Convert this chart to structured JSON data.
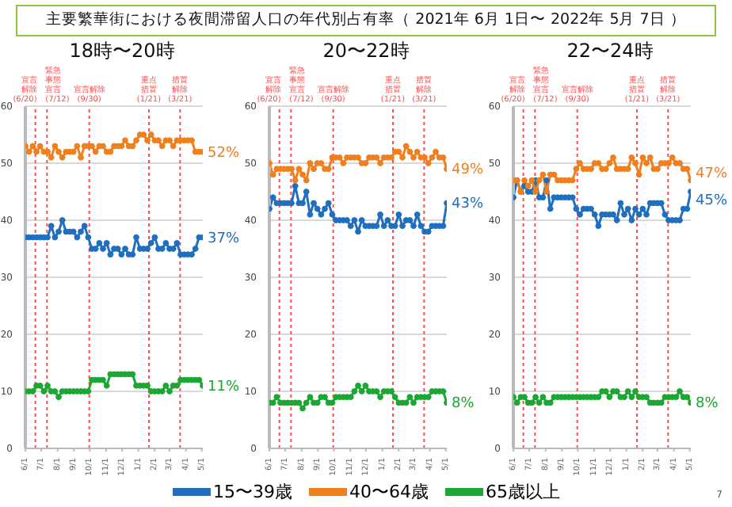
{
  "chart_data": [
    {
      "type": "other",
      "title": "主要繁華街における夜間滞留人口の年代別占有率（ 2021年 6月 1日〜 2022年 5月 7日 ）",
      "annotations": [
        "7"
      ]
    },
    {
      "type": "line",
      "title": "18時〜20時",
      "xlim": [
        "2021-06-01",
        "2022-05-03"
      ],
      "ylim": [
        0,
        60
      ],
      "yticks": [
        0,
        10,
        20,
        30,
        40,
        50,
        60
      ],
      "grid": "y",
      "marker": "circle",
      "x": [
        "2021-06-01",
        "2021-06-08",
        "2021-06-15",
        "2021-06-22",
        "2021-06-29",
        "2021-07-06",
        "2021-07-13",
        "2021-07-20",
        "2021-07-27",
        "2021-08-03",
        "2021-08-10",
        "2021-08-17",
        "2021-08-24",
        "2021-08-31",
        "2021-09-07",
        "2021-09-14",
        "2021-09-21",
        "2021-09-28",
        "2021-10-05",
        "2021-10-12",
        "2021-10-19",
        "2021-10-26",
        "2021-11-02",
        "2021-11-09",
        "2021-11-16",
        "2021-11-23",
        "2021-11-30",
        "2021-12-07",
        "2021-12-14",
        "2021-12-21",
        "2021-12-28",
        "2022-01-04",
        "2022-01-11",
        "2022-01-18",
        "2022-01-25",
        "2022-02-01",
        "2022-02-08",
        "2022-02-15",
        "2022-02-22",
        "2022-03-01",
        "2022-03-08",
        "2022-03-15",
        "2022-03-22",
        "2022-03-29",
        "2022-04-05",
        "2022-04-12",
        "2022-04-19",
        "2022-04-26",
        "2022-05-03"
      ],
      "xticks": [
        {
          "value": "2021-06-01",
          "label": "6/1"
        },
        {
          "value": "2021-07-01",
          "label": "7/1"
        },
        {
          "value": "2021-08-01",
          "label": "8/1"
        },
        {
          "value": "2021-09-01",
          "label": "9/1"
        },
        {
          "value": "2021-10-01",
          "label": "10/1"
        },
        {
          "value": "2021-11-01",
          "label": "11/1"
        },
        {
          "value": "2021-12-01",
          "label": "12/1"
        },
        {
          "value": "2022-01-01",
          "label": "1/1"
        },
        {
          "value": "2022-02-01",
          "label": "2/1"
        },
        {
          "value": "2022-03-01",
          "label": "3/1"
        },
        {
          "value": "2022-04-01",
          "label": "4/1"
        },
        {
          "value": "2022-05-01",
          "label": "5/1"
        }
      ],
      "ref_lines": [
        {
          "axis": "x",
          "value": "2021-06-20",
          "label": "宣言解除(6/20)",
          "color": "#ff4d4d",
          "line_style": "dotted"
        },
        {
          "axis": "x",
          "value": "2021-07-12",
          "label": "緊急事態宣言(7/12)",
          "color": "#ff4d4d",
          "line_style": "dotted"
        },
        {
          "axis": "x",
          "value": "2021-09-30",
          "label": "宣言解除(9/30)",
          "color": "#ff4d4d",
          "line_style": "dotted"
        },
        {
          "axis": "x",
          "value": "2022-01-21",
          "label": "重点措置(1/21)",
          "color": "#ff4d4d",
          "line_style": "dotted"
        },
        {
          "axis": "x",
          "value": "2022-03-21",
          "label": "措置解除(3/21)",
          "color": "#ff4d4d",
          "line_style": "dotted"
        }
      ],
      "annotations": [
        {
          "text": "52%",
          "x": "2022-05-03",
          "y": 52
        },
        {
          "text": "37%",
          "x": "2022-05-03",
          "y": 37
        },
        {
          "text": "11%",
          "x": "2022-05-03",
          "y": 11
        }
      ],
      "series": [
        {
          "color": "#1f6fc1",
          "values": [
            37,
            37,
            37,
            37,
            37,
            37,
            37,
            39,
            37,
            38,
            40,
            38,
            38,
            38,
            37,
            38,
            39,
            37,
            35,
            35,
            36,
            35,
            36,
            34,
            35,
            35,
            34,
            35,
            34,
            34,
            37,
            35,
            35,
            35,
            36,
            37,
            35,
            35,
            36,
            35,
            35,
            36,
            34,
            34,
            34,
            34,
            35,
            37,
            37
          ]
        },
        {
          "color": "#f07f1e",
          "values": [
            53,
            52,
            53,
            52,
            53,
            52,
            52,
            51,
            53,
            52,
            51,
            52,
            52,
            52,
            53,
            51,
            53,
            53,
            53,
            52,
            53,
            53,
            52,
            52,
            53,
            53,
            53,
            54,
            53,
            53,
            54,
            55,
            55,
            54,
            55,
            54,
            54,
            53,
            54,
            54,
            53,
            54,
            54,
            54,
            54,
            54,
            52,
            52,
            52
          ]
        },
        {
          "color": "#1aa832",
          "values": [
            10,
            10,
            10,
            11,
            11,
            10,
            11,
            10,
            10,
            9,
            10,
            10,
            10,
            10,
            10,
            10,
            10,
            10,
            12,
            12,
            12,
            12,
            11,
            13,
            13,
            13,
            13,
            13,
            13,
            13,
            11,
            11,
            11,
            11,
            10,
            10,
            10,
            10,
            11,
            10,
            11,
            11,
            12,
            12,
            12,
            12,
            12,
            12,
            11
          ]
        }
      ]
    },
    {
      "type": "line",
      "title": "20〜22時",
      "xlim": [
        "2021-06-01",
        "2022-05-03"
      ],
      "ylim": [
        0,
        60
      ],
      "yticks": [
        0,
        10,
        20,
        30,
        40,
        50,
        60
      ],
      "grid": "y",
      "marker": "circle",
      "legend": "bottom",
      "x": [
        "2021-06-01",
        "2021-06-08",
        "2021-06-15",
        "2021-06-22",
        "2021-06-29",
        "2021-07-06",
        "2021-07-13",
        "2021-07-20",
        "2021-07-27",
        "2021-08-03",
        "2021-08-10",
        "2021-08-17",
        "2021-08-24",
        "2021-08-31",
        "2021-09-07",
        "2021-09-14",
        "2021-09-21",
        "2021-09-28",
        "2021-10-05",
        "2021-10-12",
        "2021-10-19",
        "2021-10-26",
        "2021-11-02",
        "2021-11-09",
        "2021-11-16",
        "2021-11-23",
        "2021-11-30",
        "2021-12-07",
        "2021-12-14",
        "2021-12-21",
        "2021-12-28",
        "2022-01-04",
        "2022-01-11",
        "2022-01-18",
        "2022-01-25",
        "2022-02-01",
        "2022-02-08",
        "2022-02-15",
        "2022-02-22",
        "2022-03-01",
        "2022-03-08",
        "2022-03-15",
        "2022-03-22",
        "2022-03-29",
        "2022-04-05",
        "2022-04-12",
        "2022-04-19",
        "2022-04-26",
        "2022-05-03"
      ],
      "xticks": [
        {
          "value": "2021-06-01",
          "label": "6/1"
        },
        {
          "value": "2021-07-01",
          "label": "7/1"
        },
        {
          "value": "2021-08-01",
          "label": "8/1"
        },
        {
          "value": "2021-09-01",
          "label": "9/1"
        },
        {
          "value": "2021-10-01",
          "label": "10/1"
        },
        {
          "value": "2021-11-01",
          "label": "11/1"
        },
        {
          "value": "2021-12-01",
          "label": "12/1"
        },
        {
          "value": "2022-01-01",
          "label": "1/1"
        },
        {
          "value": "2022-02-01",
          "label": "2/1"
        },
        {
          "value": "2022-03-01",
          "label": "3/1"
        },
        {
          "value": "2022-04-01",
          "label": "4/1"
        },
        {
          "value": "2022-05-01",
          "label": "5/1"
        }
      ],
      "ref_lines": [
        {
          "axis": "x",
          "value": "2021-06-20",
          "label": "宣言解除(6/20)",
          "color": "#ff4d4d",
          "line_style": "dotted"
        },
        {
          "axis": "x",
          "value": "2021-07-12",
          "label": "緊急事態宣言(7/12)",
          "color": "#ff4d4d",
          "line_style": "dotted"
        },
        {
          "axis": "x",
          "value": "2021-09-30",
          "label": "宣言解除(9/30)",
          "color": "#ff4d4d",
          "line_style": "dotted"
        },
        {
          "axis": "x",
          "value": "2022-01-21",
          "label": "重点措置(1/21)",
          "color": "#ff4d4d",
          "line_style": "dotted"
        },
        {
          "axis": "x",
          "value": "2022-03-21",
          "label": "措置解除(3/21)",
          "color": "#ff4d4d",
          "line_style": "dotted"
        }
      ],
      "annotations": [
        {
          "text": "49%",
          "x": "2022-05-03",
          "y": 49
        },
        {
          "text": "43%",
          "x": "2022-05-03",
          "y": 43
        },
        {
          "text": "8%",
          "x": "2022-05-03",
          "y": 8
        }
      ],
      "series": [
        {
          "name": "15〜39歳",
          "color": "#1f6fc1",
          "values": [
            42,
            44,
            43,
            43,
            43,
            43,
            43,
            46,
            43,
            43,
            45,
            41,
            43,
            42,
            41,
            42,
            43,
            41,
            40,
            40,
            40,
            40,
            39,
            40,
            38,
            40,
            39,
            39,
            39,
            39,
            41,
            39,
            40,
            39,
            39,
            41,
            39,
            40,
            40,
            39,
            41,
            39,
            38,
            38,
            39,
            39,
            39,
            39,
            43
          ]
        },
        {
          "name": "40〜64歳",
          "color": "#f07f1e",
          "values": [
            50,
            48,
            49,
            49,
            49,
            49,
            49,
            47,
            49,
            48,
            47,
            50,
            49,
            50,
            50,
            49,
            49,
            51,
            51,
            51,
            50,
            51,
            51,
            51,
            51,
            50,
            50,
            51,
            51,
            51,
            50,
            51,
            51,
            51,
            52,
            52,
            51,
            53,
            52,
            51,
            52,
            51,
            51,
            50,
            51,
            52,
            51,
            51,
            49
          ]
        },
        {
          "name": "65歳以上",
          "color": "#1aa832",
          "values": [
            8,
            8,
            9,
            8,
            8,
            8,
            8,
            8,
            8,
            7,
            8,
            9,
            8,
            8,
            9,
            9,
            8,
            8,
            9,
            9,
            9,
            9,
            9,
            10,
            11,
            10,
            11,
            10,
            10,
            10,
            9,
            10,
            10,
            10,
            9,
            8,
            8,
            8,
            9,
            8,
            9,
            9,
            9,
            9,
            10,
            10,
            10,
            10,
            8
          ]
        }
      ]
    },
    {
      "type": "line",
      "title": "22〜24時",
      "xlim": [
        "2021-06-01",
        "2022-05-03"
      ],
      "ylim": [
        0,
        60
      ],
      "yticks": [
        0,
        10,
        20,
        30,
        40,
        50,
        60
      ],
      "grid": "y",
      "marker": "circle",
      "x": [
        "2021-06-01",
        "2021-06-08",
        "2021-06-15",
        "2021-06-22",
        "2021-06-29",
        "2021-07-06",
        "2021-07-13",
        "2021-07-20",
        "2021-07-27",
        "2021-08-03",
        "2021-08-10",
        "2021-08-17",
        "2021-08-24",
        "2021-08-31",
        "2021-09-07",
        "2021-09-14",
        "2021-09-21",
        "2021-09-28",
        "2021-10-05",
        "2021-10-12",
        "2021-10-19",
        "2021-10-26",
        "2021-11-02",
        "2021-11-09",
        "2021-11-16",
        "2021-11-23",
        "2021-11-30",
        "2021-12-07",
        "2021-12-14",
        "2021-12-21",
        "2021-12-28",
        "2022-01-04",
        "2022-01-11",
        "2022-01-18",
        "2022-01-25",
        "2022-02-01",
        "2022-02-08",
        "2022-02-15",
        "2022-02-22",
        "2022-03-01",
        "2022-03-08",
        "2022-03-15",
        "2022-03-22",
        "2022-03-29",
        "2022-04-05",
        "2022-04-12",
        "2022-04-19",
        "2022-04-26",
        "2022-05-03"
      ],
      "xticks": [
        {
          "value": "2021-06-01",
          "label": "6/1"
        },
        {
          "value": "2021-07-01",
          "label": "7/1"
        },
        {
          "value": "2021-08-01",
          "label": "8/1"
        },
        {
          "value": "2021-09-01",
          "label": "9/1"
        },
        {
          "value": "2021-10-01",
          "label": "10/1"
        },
        {
          "value": "2021-11-01",
          "label": "11/1"
        },
        {
          "value": "2021-12-01",
          "label": "12/1"
        },
        {
          "value": "2022-01-01",
          "label": "1/1"
        },
        {
          "value": "2022-02-01",
          "label": "2/1"
        },
        {
          "value": "2022-03-01",
          "label": "3/1"
        },
        {
          "value": "2022-04-01",
          "label": "4/1"
        },
        {
          "value": "2022-05-01",
          "label": "5/1"
        }
      ],
      "ref_lines": [
        {
          "axis": "x",
          "value": "2021-06-20",
          "label": "宣言解除(6/20)",
          "color": "#ff4d4d",
          "line_style": "dotted"
        },
        {
          "axis": "x",
          "value": "2021-07-12",
          "label": "緊急事態宣言(7/12)",
          "color": "#ff4d4d",
          "line_style": "dotted"
        },
        {
          "axis": "x",
          "value": "2021-09-30",
          "label": "宣言解除(9/30)",
          "color": "#ff4d4d",
          "line_style": "dotted"
        },
        {
          "axis": "x",
          "value": "2022-01-21",
          "label": "重点措置(1/21)",
          "color": "#ff4d4d",
          "line_style": "dotted"
        },
        {
          "axis": "x",
          "value": "2022-03-21",
          "label": "措置解除(3/21)",
          "color": "#ff4d4d",
          "line_style": "dotted"
        }
      ],
      "annotations": [
        {
          "text": "47%",
          "x": "2022-05-03",
          "y": 47
        },
        {
          "text": "45%",
          "x": "2022-05-03",
          "y": 45
        },
        {
          "text": "8%",
          "x": "2022-05-03",
          "y": 8
        }
      ],
      "series": [
        {
          "color": "#1f6fc1",
          "values": [
            44,
            47,
            45,
            46,
            45,
            45,
            47,
            44,
            44,
            47,
            42,
            44,
            44,
            44,
            44,
            44,
            44,
            42,
            41,
            42,
            42,
            42,
            41,
            39,
            41,
            41,
            41,
            41,
            40,
            43,
            41,
            42,
            40,
            42,
            41,
            42,
            41,
            43,
            43,
            43,
            43,
            41,
            40,
            40,
            40,
            40,
            42,
            42,
            45
          ]
        },
        {
          "color": "#f07f1e",
          "values": [
            47,
            47,
            45,
            47,
            46,
            47,
            45,
            47,
            48,
            45,
            48,
            48,
            47,
            47,
            47,
            47,
            47,
            49,
            50,
            49,
            49,
            49,
            50,
            50,
            49,
            49,
            50,
            51,
            49,
            49,
            49,
            49,
            51,
            50,
            48,
            51,
            50,
            51,
            49,
            49,
            50,
            50,
            50,
            51,
            50,
            50,
            49,
            49,
            47
          ]
        },
        {
          "color": "#1aa832",
          "values": [
            9,
            8,
            9,
            9,
            8,
            8,
            9,
            8,
            9,
            8,
            8,
            9,
            9,
            9,
            9,
            9,
            9,
            9,
            9,
            9,
            9,
            9,
            9,
            9,
            10,
            10,
            9,
            10,
            10,
            9,
            9,
            10,
            9,
            10,
            9,
            9,
            9,
            8,
            8,
            8,
            8,
            9,
            9,
            9,
            9,
            10,
            9,
            9,
            8
          ]
        }
      ]
    }
  ]
}
